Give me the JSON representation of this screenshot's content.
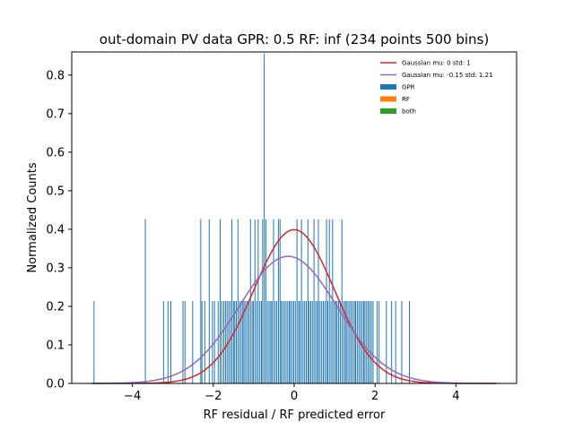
{
  "chart_data": {
    "type": "bar",
    "title": "out-domain PV data GPR: 0.5 RF: inf (234 points 500 bins)",
    "xlabel": "RF residual / RF predicted error",
    "ylabel": "Normalized Counts",
    "xlim": [
      -5.5,
      5.5
    ],
    "ylim": [
      0,
      0.86
    ],
    "xticks": [
      -4,
      -2,
      0,
      2,
      4
    ],
    "yticks": [
      0.0,
      0.1,
      0.2,
      0.3,
      0.4,
      0.5,
      0.6,
      0.7,
      0.8
    ],
    "xtick_labels": [
      "−4",
      "−2",
      "0",
      "2",
      "4"
    ],
    "ytick_labels": [
      "0.0",
      "0.1",
      "0.2",
      "0.3",
      "0.4",
      "0.5",
      "0.6",
      "0.7",
      "0.8"
    ],
    "grid": false,
    "legend_position": "top-right",
    "bin_width": 0.02,
    "lines": [
      {
        "name": "Gaussian mu: 0 std: 1",
        "color": "#d62728",
        "mu": 0,
        "std": 1,
        "x_range": [
          -5,
          5
        ]
      },
      {
        "name": "Gaussian mu: -0.15 std: 1.21",
        "color": "#9467bd",
        "mu": -0.15,
        "std": 1.21,
        "x_range": [
          -5,
          5
        ]
      }
    ],
    "bars": [
      {
        "name": "GPR",
        "color": "#1f77b4"
      },
      {
        "name": "RF",
        "color": "#ff7f0e"
      },
      {
        "name": "both",
        "color": "#2ca02c"
      }
    ],
    "histogram": {
      "x": [
        -4.95,
        -3.68,
        -3.23,
        -3.12,
        -3.05,
        -2.75,
        -2.7,
        -2.51,
        -2.31,
        -2.28,
        -2.21,
        -2.1,
        -2.02,
        -1.97,
        -1.88,
        -1.83,
        -1.79,
        -1.74,
        -1.7,
        -1.66,
        -1.62,
        -1.58,
        -1.54,
        -1.5,
        -1.47,
        -1.43,
        -1.39,
        -1.35,
        -1.31,
        -1.27,
        -1.24,
        -1.2,
        -1.16,
        -1.12,
        -1.08,
        -1.04,
        -1.01,
        -0.97,
        -0.93,
        -0.89,
        -0.85,
        -0.81,
        -0.78,
        -0.74,
        -0.7,
        -0.66,
        -0.62,
        -0.58,
        -0.55,
        -0.51,
        -0.47,
        -0.43,
        -0.39,
        -0.35,
        -0.32,
        -0.28,
        -0.24,
        -0.2,
        -0.16,
        -0.12,
        -0.09,
        -0.05,
        -0.01,
        0.03,
        0.07,
        0.11,
        0.14,
        0.18,
        0.22,
        0.26,
        0.3,
        0.34,
        0.37,
        0.41,
        0.45,
        0.49,
        0.53,
        0.57,
        0.6,
        0.64,
        0.68,
        0.72,
        0.76,
        0.8,
        0.83,
        0.87,
        0.91,
        0.95,
        0.99,
        1.03,
        1.06,
        1.1,
        1.14,
        1.18,
        1.22,
        1.26,
        1.29,
        1.33,
        1.37,
        1.41,
        1.45,
        1.49,
        1.52,
        1.56,
        1.6,
        1.64,
        1.68,
        1.72,
        1.75,
        1.79,
        1.83,
        1.87,
        1.91,
        1.95,
        2.05,
        2.1,
        2.28,
        2.41,
        2.51,
        2.66,
        2.85
      ],
      "values": [
        0.214,
        0.426,
        0.214,
        0.214,
        0.214,
        0.214,
        0.214,
        0.214,
        0.426,
        0.214,
        0.214,
        0.426,
        0.214,
        0.214,
        0.214,
        0.426,
        0.214,
        0.214,
        0.214,
        0.214,
        0.214,
        0.214,
        0.426,
        0.214,
        0.214,
        0.214,
        0.426,
        0.214,
        0.214,
        0.214,
        0.214,
        0.214,
        0.214,
        0.214,
        0.426,
        0.214,
        0.214,
        0.426,
        0.214,
        0.426,
        0.214,
        0.214,
        0.426,
        0.856,
        0.426,
        0.214,
        0.214,
        0.214,
        0.214,
        0.426,
        0.214,
        0.214,
        0.426,
        0.426,
        0.214,
        0.214,
        0.214,
        0.214,
        0.214,
        0.214,
        0.214,
        0.214,
        0.214,
        0.214,
        0.426,
        0.214,
        0.214,
        0.426,
        0.214,
        0.214,
        0.214,
        0.426,
        0.214,
        0.214,
        0.214,
        0.426,
        0.214,
        0.214,
        0.426,
        0.214,
        0.214,
        0.214,
        0.214,
        0.426,
        0.214,
        0.426,
        0.214,
        0.426,
        0.214,
        0.214,
        0.214,
        0.214,
        0.214,
        0.426,
        0.214,
        0.214,
        0.214,
        0.214,
        0.214,
        0.214,
        0.214,
        0.214,
        0.214,
        0.214,
        0.214,
        0.214,
        0.214,
        0.214,
        0.214,
        0.214,
        0.214,
        0.214,
        0.214,
        0.214,
        0.214,
        0.214,
        0.214,
        0.214,
        0.214,
        0.214,
        0.214
      ]
    }
  }
}
